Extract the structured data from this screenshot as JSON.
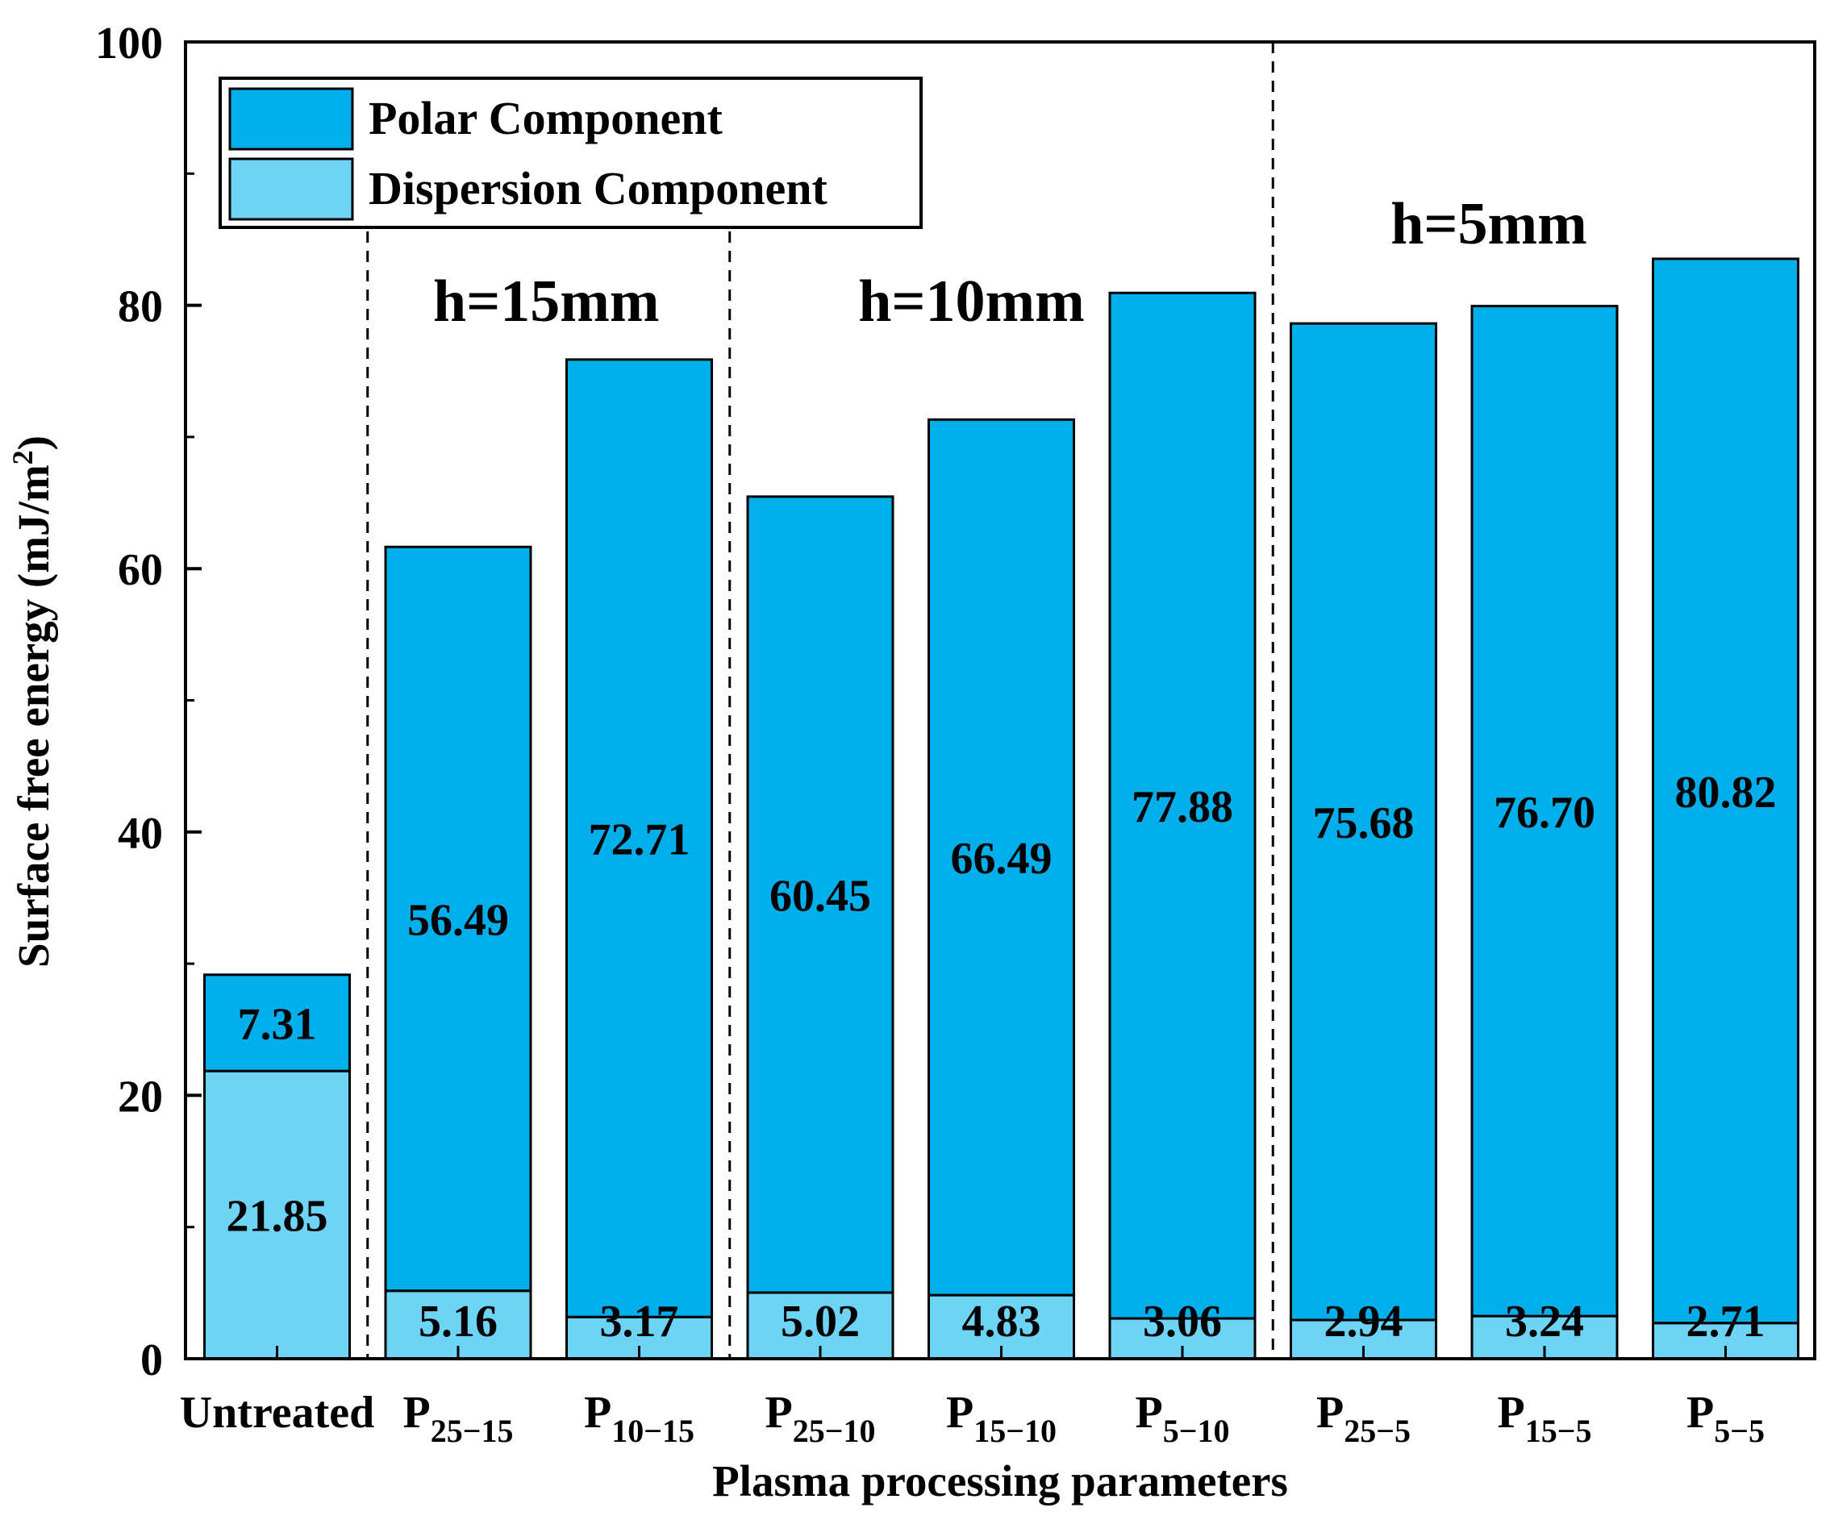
{
  "chart_data": {
    "type": "bar",
    "stacked": true,
    "title": "",
    "xlabel": "Plasma processing parameters",
    "ylabel": "Surface free energy (mJ/m",
    "ylabel_sup": "2",
    "ylabel_close": ")",
    "ylim": [
      0,
      100
    ],
    "yticks": [
      "0",
      "20",
      "40",
      "60",
      "80",
      "100"
    ],
    "categories": [
      {
        "base": "Untreated",
        "sub": ""
      },
      {
        "base": "P",
        "sub": "25−15"
      },
      {
        "base": "P",
        "sub": "10−15"
      },
      {
        "base": "P",
        "sub": "25−10"
      },
      {
        "base": "P",
        "sub": "15−10"
      },
      {
        "base": "P",
        "sub": "5−10"
      },
      {
        "base": "P",
        "sub": "25−5"
      },
      {
        "base": "P",
        "sub": "15−5"
      },
      {
        "base": "P",
        "sub": "5−5"
      }
    ],
    "series": [
      {
        "name": "Dispersion Component",
        "color": "#6dd4f6",
        "values": [
          21.85,
          5.16,
          3.17,
          5.02,
          4.83,
          3.06,
          2.94,
          3.24,
          2.71
        ],
        "labels": [
          "21.85",
          "5.16",
          "3.17",
          "5.02",
          "4.83",
          "3.06",
          "2.94",
          "3.24",
          "2.71"
        ]
      },
      {
        "name": "Polar Component",
        "color": "#00aeea",
        "values": [
          7.31,
          56.49,
          72.71,
          60.45,
          66.49,
          77.88,
          75.68,
          76.7,
          80.82
        ],
        "labels": [
          "7.31",
          "56.49",
          "72.71",
          "60.45",
          "66.49",
          "77.88",
          "75.68",
          "76.70",
          "80.82"
        ]
      }
    ],
    "legend": {
      "placement": "top-left",
      "entries": [
        "Polar Component",
        "Dispersion Component"
      ]
    },
    "group_dividers_after_index": [
      0,
      2,
      5
    ],
    "group_annotations": [
      {
        "text": "h=15mm",
        "group": [
          1,
          2
        ]
      },
      {
        "text": "h=10mm",
        "group": [
          3,
          5
        ]
      },
      {
        "text": "h=5mm",
        "group": [
          6,
          8
        ]
      }
    ],
    "grid": false
  }
}
